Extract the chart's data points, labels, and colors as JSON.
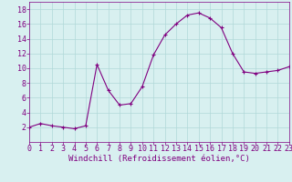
{
  "x": [
    0,
    1,
    2,
    3,
    4,
    5,
    6,
    7,
    8,
    9,
    10,
    11,
    12,
    13,
    14,
    15,
    16,
    17,
    18,
    19,
    20,
    21,
    22,
    23
  ],
  "y": [
    2.0,
    2.5,
    2.2,
    2.0,
    1.8,
    2.2,
    10.5,
    7.0,
    5.0,
    5.2,
    7.5,
    11.8,
    14.5,
    16.0,
    17.2,
    17.5,
    16.8,
    15.5,
    12.0,
    9.5,
    9.3,
    9.5,
    9.7,
    10.2
  ],
  "xlim": [
    0,
    23
  ],
  "ylim": [
    0,
    19
  ],
  "yticks": [
    2,
    4,
    6,
    8,
    10,
    12,
    14,
    16,
    18
  ],
  "xticks": [
    0,
    1,
    2,
    3,
    4,
    5,
    6,
    7,
    8,
    9,
    10,
    11,
    12,
    13,
    14,
    15,
    16,
    17,
    18,
    19,
    20,
    21,
    22,
    23
  ],
  "xlabel": "Windchill (Refroidissement éolien,°C)",
  "line_color": "#800080",
  "marker": "+",
  "bg_color": "#d8f0f0",
  "grid_color": "#b0d8d8",
  "xlabel_fontsize": 6.5,
  "tick_fontsize": 6.0,
  "linewidth": 0.8,
  "markersize": 3.5
}
